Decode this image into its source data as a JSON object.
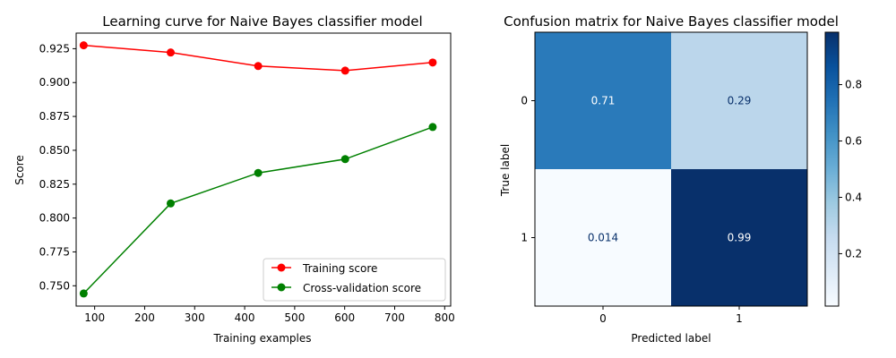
{
  "chart_data": [
    {
      "type": "line",
      "title": "Learning curve for Naive Bayes classifier model",
      "xlabel": "Training examples",
      "ylabel": "Score",
      "xlim": [
        63,
        812
      ],
      "ylim": [
        0.735,
        0.9365
      ],
      "xticks": [
        100,
        200,
        300,
        400,
        500,
        600,
        700,
        800
      ],
      "yticks": [
        0.75,
        0.775,
        0.8,
        0.825,
        0.85,
        0.875,
        0.9,
        0.925
      ],
      "ytick_labels": [
        "0.750",
        "0.775",
        "0.800",
        "0.825",
        "0.850",
        "0.875",
        "0.900",
        "0.925"
      ],
      "x": [
        78,
        252,
        427,
        601,
        776
      ],
      "series": [
        {
          "name": "Training score",
          "color": "#ff0000",
          "values": [
            0.9275,
            0.9222,
            0.9122,
            0.9088,
            0.9148
          ]
        },
        {
          "name": "Cross-validation score",
          "color": "#008000",
          "values": [
            0.7443,
            0.8108,
            0.8333,
            0.8435,
            0.8672
          ]
        }
      ],
      "legend_position": "lower-right",
      "grid": false
    },
    {
      "type": "heatmap",
      "title": "Confusion matrix for Naive Bayes classifier model",
      "xlabel": "Predicted label",
      "ylabel": "True label",
      "row_labels": [
        "0",
        "1"
      ],
      "col_labels": [
        "0",
        "1"
      ],
      "values": [
        [
          0.71,
          0.29
        ],
        [
          0.014,
          0.99
        ]
      ],
      "cell_labels": [
        [
          "0.71",
          "0.29"
        ],
        [
          "0.014",
          "0.99"
        ]
      ],
      "colormap": "Blues",
      "colorbar_range": [
        0.014,
        0.986
      ],
      "colorbar_ticks": [
        0.2,
        0.4,
        0.6,
        0.8
      ],
      "colorbar_tick_labels": [
        "0.2",
        "0.4",
        "0.6",
        "0.8"
      ]
    }
  ]
}
